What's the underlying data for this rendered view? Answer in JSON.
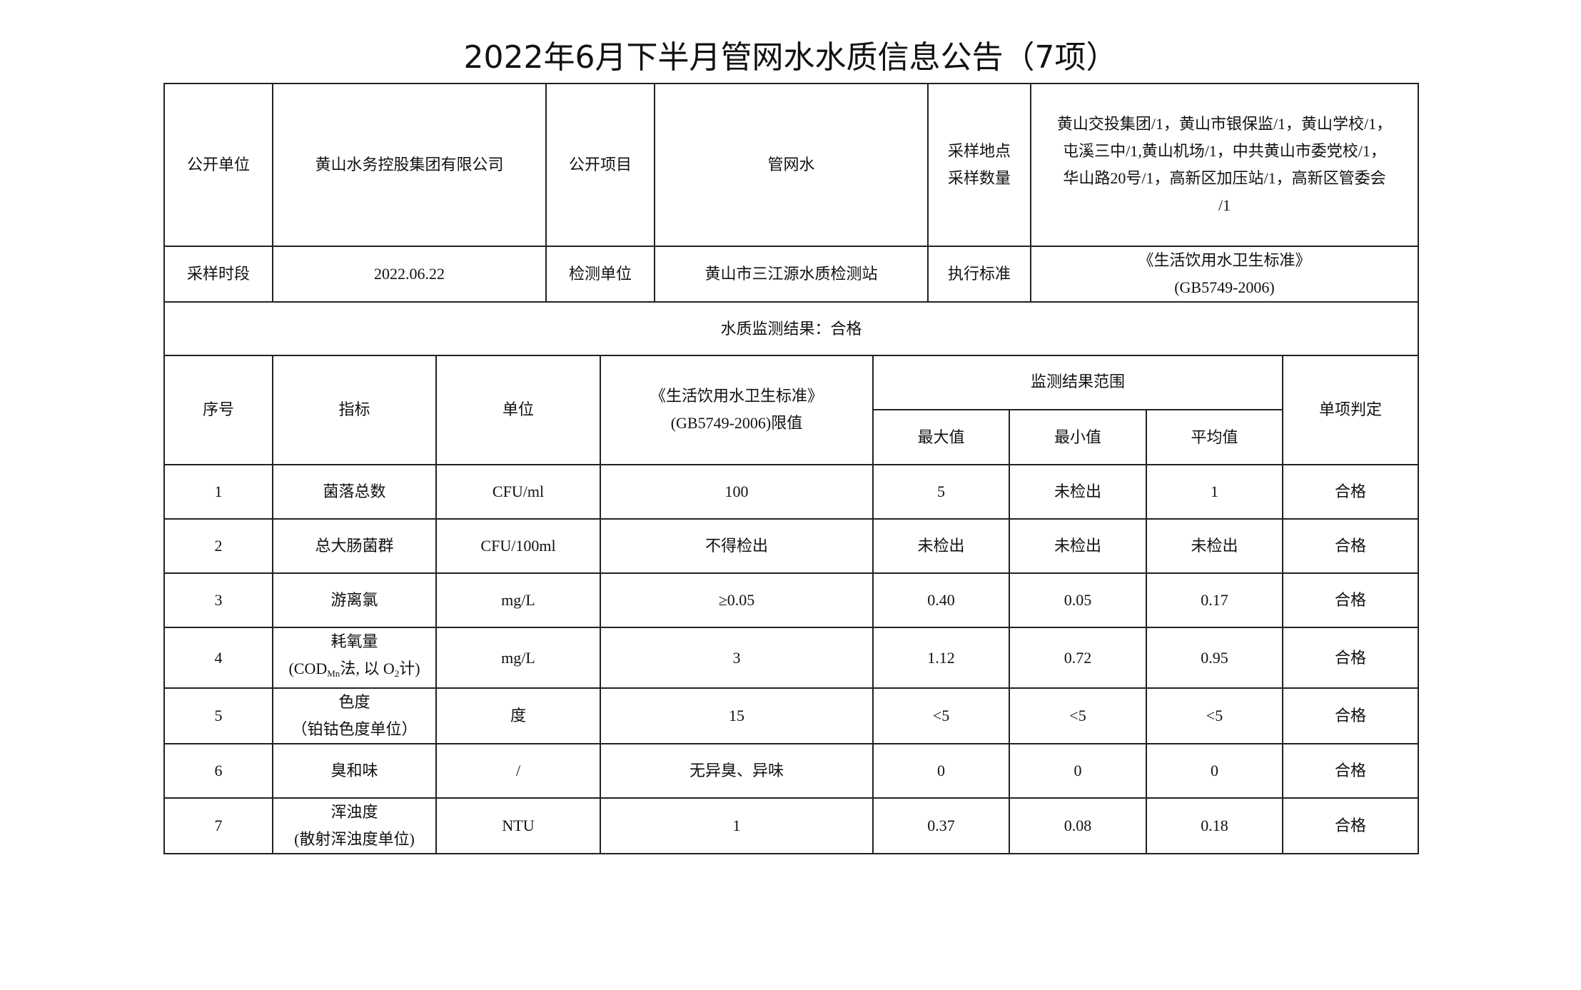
{
  "title": "2022年6月下半月管网水水质信息公告（7项）",
  "info": {
    "unit_label": "公开单位",
    "unit_value": "黄山水务控股集团有限公司",
    "item_label": "公开项目",
    "item_value": "管网水",
    "site_label_1": "采样地点",
    "site_label_2": "采样数量",
    "sites": [
      "黄山交投集团/1，黄山市银保监/1，黄山学校/1，",
      "屯溪三中/1,黄山机场/1，中共黄山市委党校/1，",
      "华山路20号/1，高新区加压站/1，高新区管委会",
      "/1"
    ],
    "period_label": "采样时段",
    "period_value": "2022.06.22",
    "lab_label": "检测单位",
    "lab_value": "黄山市三江源水质检测站",
    "std_label": "执行标准",
    "std_value_1": "《生活饮用水卫生标准》",
    "std_value_2": "(GB5749-2006)",
    "result": "水质监测结果：合格"
  },
  "headers": {
    "no": "序号",
    "indicator": "指标",
    "unit": "单位",
    "limit_1": "《生活饮用水卫生标准》",
    "limit_2": "(GB5749-2006)限值",
    "range": "监测结果范围",
    "max": "最大值",
    "min": "最小值",
    "avg": "平均值",
    "judge": "单项判定"
  },
  "rows": [
    {
      "no": "1",
      "name": "菌落总数",
      "name2": "",
      "unit": "CFU/ml",
      "limit": "100",
      "max": "5",
      "min": "未检出",
      "avg": "1",
      "judge": "合格"
    },
    {
      "no": "2",
      "name": "总大肠菌群",
      "name2": "",
      "unit": "CFU/100ml",
      "limit": "不得检出",
      "max": "未检出",
      "min": "未检出",
      "avg": "未检出",
      "judge": "合格"
    },
    {
      "no": "3",
      "name": "游离氯",
      "name2": "",
      "unit": "mg/L",
      "limit": "≥0.05",
      "max": "0.40",
      "min": "0.05",
      "avg": "0.17",
      "judge": "合格"
    },
    {
      "no": "4",
      "name": "耗氧量",
      "name2": "",
      "unit": "mg/L",
      "limit": "3",
      "max": "1.12",
      "min": "0.72",
      "avg": "0.95",
      "judge": "合格"
    },
    {
      "no": "5",
      "name": "色度",
      "name2": "（铂钴色度单位）",
      "unit": "度",
      "limit": "15",
      "max": "<5",
      "min": "<5",
      "avg": "<5",
      "judge": "合格"
    },
    {
      "no": "6",
      "name": "臭和味",
      "name2": "",
      "unit": "/",
      "limit": "无异臭、异味",
      "max": "0",
      "min": "0",
      "avg": "0",
      "judge": "合格"
    },
    {
      "no": "7",
      "name": "浑浊度",
      "name2": "(散射浑浊度单位)",
      "unit": "NTU",
      "limit": "1",
      "max": "0.37",
      "min": "0.08",
      "avg": "0.18",
      "judge": "合格"
    }
  ],
  "cod": {
    "a": "(COD",
    "sub": "Mn",
    "b": "法, 以 O",
    "sub2": "2",
    "c": "计)"
  }
}
